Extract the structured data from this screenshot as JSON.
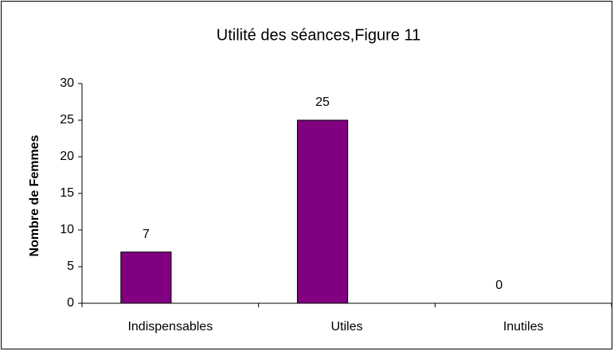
{
  "chart_data": {
    "type": "bar",
    "title": "Utilité des séances,Figure 11",
    "y_label": "Nombre de Femmes",
    "categories": [
      "Indispensables",
      "Utiles",
      "Inutiles"
    ],
    "values": [
      7,
      25,
      0
    ],
    "color": "#800080",
    "ylim": [
      0,
      30
    ],
    "yticks": [
      0,
      5,
      10,
      15,
      20,
      25,
      30
    ],
    "grid": false
  }
}
